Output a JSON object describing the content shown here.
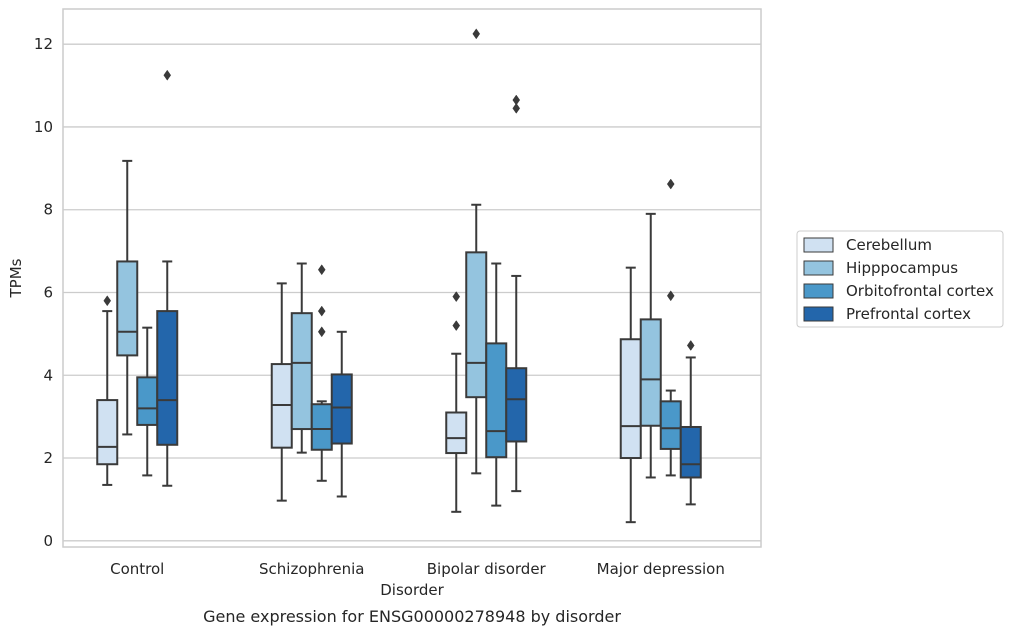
{
  "chart_data": {
    "type": "box",
    "xlabel": "Disorder",
    "ylabel": "TPMs",
    "caption": "Gene expression for ENSG00000278948 by disorder",
    "ylim": [
      -0.15,
      12.85
    ],
    "yticks": [
      0,
      2,
      4,
      6,
      8,
      10,
      12
    ],
    "grid": "horizontal",
    "legend_position": "right",
    "categories": [
      "Control",
      "Schizophrenia",
      "Bipolar disorder",
      "Major depression"
    ],
    "series": [
      {
        "name": "Cerebellum",
        "color": "#d0e1f2",
        "boxes": [
          {
            "whisker_low": 1.35,
            "q1": 1.85,
            "median": 2.27,
            "q3": 3.4,
            "whisker_high": 5.55,
            "outliers": [
              5.8
            ]
          },
          {
            "whisker_low": 0.97,
            "q1": 2.25,
            "median": 3.28,
            "q3": 4.27,
            "whisker_high": 6.22,
            "outliers": []
          },
          {
            "whisker_low": 0.7,
            "q1": 2.12,
            "median": 2.48,
            "q3": 3.1,
            "whisker_high": 4.52,
            "outliers": [
              5.2,
              5.9
            ]
          },
          {
            "whisker_low": 0.45,
            "q1": 2.0,
            "median": 2.77,
            "q3": 4.87,
            "whisker_high": 6.6,
            "outliers": []
          }
        ]
      },
      {
        "name": "Hipppocampus",
        "color": "#94c4df",
        "boxes": [
          {
            "whisker_low": 2.57,
            "q1": 4.48,
            "median": 5.05,
            "q3": 6.75,
            "whisker_high": 9.18,
            "outliers": []
          },
          {
            "whisker_low": 2.13,
            "q1": 2.7,
            "median": 4.3,
            "q3": 5.5,
            "whisker_high": 6.7,
            "outliers": []
          },
          {
            "whisker_low": 1.63,
            "q1": 3.47,
            "median": 4.3,
            "q3": 6.97,
            "whisker_high": 8.12,
            "outliers": [
              12.25
            ]
          },
          {
            "whisker_low": 1.53,
            "q1": 2.78,
            "median": 3.9,
            "q3": 5.35,
            "whisker_high": 7.9,
            "outliers": []
          }
        ]
      },
      {
        "name": "Orbitofrontal cortex",
        "color": "#4a98c9",
        "boxes": [
          {
            "whisker_low": 1.58,
            "q1": 2.8,
            "median": 3.2,
            "q3": 3.95,
            "whisker_high": 5.15,
            "outliers": []
          },
          {
            "whisker_low": 1.45,
            "q1": 2.2,
            "median": 2.7,
            "q3": 3.3,
            "whisker_high": 3.37,
            "outliers": [
              5.05,
              5.55,
              6.55
            ]
          },
          {
            "whisker_low": 0.85,
            "q1": 2.02,
            "median": 2.65,
            "q3": 4.77,
            "whisker_high": 6.7,
            "outliers": []
          },
          {
            "whisker_low": 1.58,
            "q1": 2.22,
            "median": 2.72,
            "q3": 3.37,
            "whisker_high": 3.63,
            "outliers": [
              5.92,
              8.62
            ]
          }
        ]
      },
      {
        "name": "Prefrontal cortex",
        "color": "#2366ab",
        "boxes": [
          {
            "whisker_low": 1.33,
            "q1": 2.32,
            "median": 3.4,
            "q3": 5.55,
            "whisker_high": 6.75,
            "outliers": [
              11.25
            ]
          },
          {
            "whisker_low": 1.07,
            "q1": 2.35,
            "median": 3.22,
            "q3": 4.02,
            "whisker_high": 5.05,
            "outliers": []
          },
          {
            "whisker_low": 1.2,
            "q1": 2.4,
            "median": 3.42,
            "q3": 4.17,
            "whisker_high": 6.4,
            "outliers": [
              10.45,
              10.65
            ]
          },
          {
            "whisker_low": 0.88,
            "q1": 1.53,
            "median": 1.85,
            "q3": 2.75,
            "whisker_high": 4.43,
            "outliers": [
              4.72
            ]
          }
        ]
      }
    ]
  }
}
